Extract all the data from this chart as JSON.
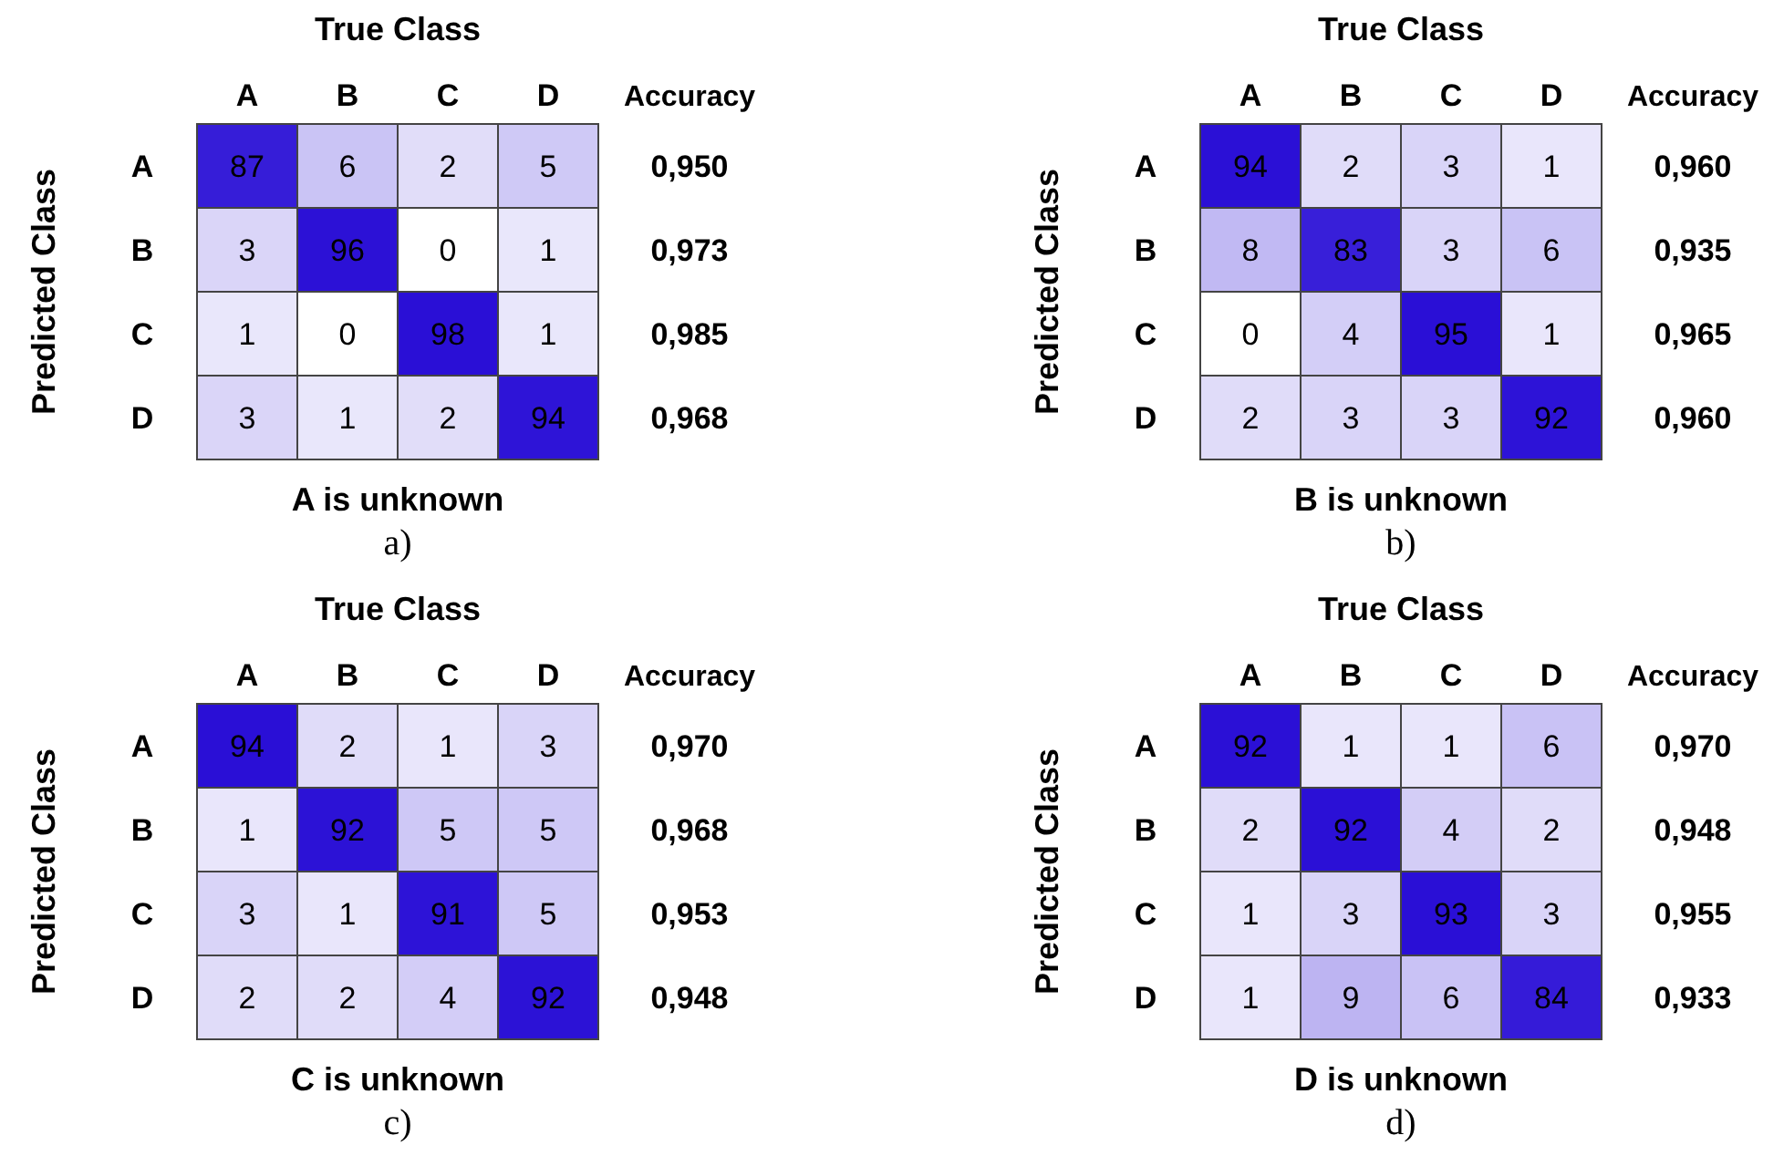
{
  "chart_data": [
    {
      "type": "heatmap",
      "title": "True Class",
      "xlabel": "A is unknown",
      "ylabel": "Predicted Class",
      "y2label": "Accuracy",
      "categories": [
        "A",
        "B",
        "C",
        "D"
      ],
      "y_categories": [
        "A",
        "B",
        "C",
        "D"
      ],
      "y2_categories": [
        "0,950",
        "0,973",
        "0,985",
        "0,968"
      ],
      "cells": [
        [
          87,
          6,
          2,
          5
        ],
        [
          3,
          96,
          0,
          1
        ],
        [
          1,
          0,
          98,
          1
        ],
        [
          3,
          1,
          2,
          94
        ]
      ],
      "data_labels": true,
      "annotations": [
        "a)"
      ]
    },
    {
      "type": "heatmap",
      "title": "True Class",
      "xlabel": "B is unknown",
      "ylabel": "Predicted Class",
      "y2label": "Accuracy",
      "categories": [
        "A",
        "B",
        "C",
        "D"
      ],
      "y_categories": [
        "A",
        "B",
        "C",
        "D"
      ],
      "y2_categories": [
        "0,960",
        "0,935",
        "0,965",
        "0,960"
      ],
      "cells": [
        [
          94,
          2,
          3,
          1
        ],
        [
          8,
          83,
          3,
          6
        ],
        [
          0,
          4,
          95,
          1
        ],
        [
          2,
          3,
          3,
          92
        ]
      ],
      "data_labels": true,
      "annotations": [
        "b)"
      ]
    },
    {
      "type": "heatmap",
      "title": "True Class",
      "xlabel": "C is unknown",
      "ylabel": "Predicted Class",
      "y2label": "Accuracy",
      "categories": [
        "A",
        "B",
        "C",
        "D"
      ],
      "y_categories": [
        "A",
        "B",
        "C",
        "D"
      ],
      "y2_categories": [
        "0,970",
        "0,968",
        "0,953",
        "0,948"
      ],
      "cells": [
        [
          94,
          2,
          1,
          3
        ],
        [
          1,
          92,
          5,
          5
        ],
        [
          3,
          1,
          91,
          5
        ],
        [
          2,
          2,
          4,
          92
        ]
      ],
      "data_labels": true,
      "annotations": [
        "c)"
      ]
    },
    {
      "type": "heatmap",
      "title": "True Class",
      "xlabel": "D is unknown",
      "ylabel": "Predicted Class",
      "y2label": "Accuracy",
      "categories": [
        "A",
        "B",
        "C",
        "D"
      ],
      "y_categories": [
        "A",
        "B",
        "C",
        "D"
      ],
      "y2_categories": [
        "0,970",
        "0,948",
        "0,955",
        "0,933"
      ],
      "cells": [
        [
          92,
          1,
          1,
          6
        ],
        [
          2,
          92,
          4,
          2
        ],
        [
          1,
          3,
          93,
          3
        ],
        [
          1,
          9,
          6,
          84
        ]
      ],
      "data_labels": true,
      "annotations": [
        "d)"
      ]
    }
  ]
}
